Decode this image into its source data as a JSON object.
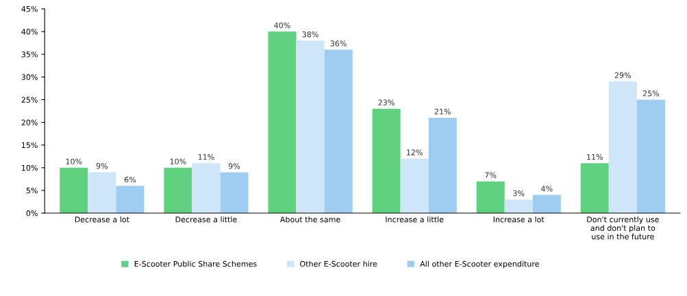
{
  "chart_data": {
    "type": "bar",
    "categories": [
      "Decrease a lot",
      "Decrease a little",
      "About the same",
      "Increase a little",
      "Increase a lot",
      "Don't currently use\nand don't plan to\nuse in the future"
    ],
    "series": [
      {
        "name": "E-Scooter Public Share Schemes",
        "color": "#5fd17f",
        "values": [
          10,
          10,
          40,
          23,
          7,
          11
        ],
        "value_labels": [
          "10%",
          "10%",
          "40%",
          "23%",
          "7%",
          "11%"
        ]
      },
      {
        "name": "Other E-Scooter hire",
        "color": "#cfe6f8",
        "values": [
          9,
          11,
          38,
          12,
          3,
          29
        ],
        "value_labels": [
          "9%",
          "11%",
          "38%",
          "12%",
          "3%",
          "29%"
        ]
      },
      {
        "name": "All other E-Scooter expenditure",
        "color": "#9fcdf2",
        "values": [
          6,
          9,
          36,
          21,
          4,
          25
        ],
        "value_labels": [
          "6%",
          "9%",
          "36%",
          "21%",
          "4%",
          "25%"
        ]
      }
    ],
    "ylim": [
      0,
      45
    ],
    "yticks": [
      {
        "value": 0,
        "label": "0%"
      },
      {
        "value": 5,
        "label": "5%"
      },
      {
        "value": 10,
        "label": "10%"
      },
      {
        "value": 15,
        "label": "15%"
      },
      {
        "value": 20,
        "label": "20%"
      },
      {
        "value": 25,
        "label": "25%"
      },
      {
        "value": 30,
        "label": "30%"
      },
      {
        "value": 35,
        "label": "35%"
      },
      {
        "value": 40,
        "label": "40%"
      },
      {
        "value": 45,
        "label": "45%"
      }
    ],
    "legend": "bottom"
  }
}
